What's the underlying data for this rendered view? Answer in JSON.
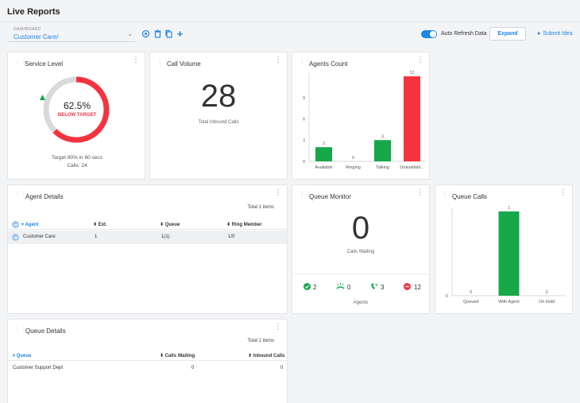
{
  "header": {
    "title": "Live Reports",
    "dashboard_label": "DASHBOARD",
    "dashboard_value": "Customer Care/",
    "auto_refresh_label": "Auto Refresh Data",
    "expand_label": "Expand",
    "submit_idea_label": "Submit Idea"
  },
  "service_level": {
    "title": "Service Level",
    "percent_text": "62.5%",
    "percent_value": 62.5,
    "status": "BELOW TARGET",
    "target_text": "Target 80% in 60 secs",
    "calls_text": "Calls: 24",
    "colors": {
      "ring": "#f4333f",
      "track": "#d7d9dc",
      "arrow": "#17a84a"
    }
  },
  "call_volume": {
    "title": "Call Volume",
    "value": "28",
    "caption": "Total Inbound Calls"
  },
  "agents_count": {
    "title": "Agents Count",
    "chart_data": {
      "type": "bar",
      "categories": [
        "Available",
        "Ringing",
        "Talking",
        "Unavailabl..."
      ],
      "values": [
        2,
        0,
        3,
        12
      ],
      "colors": [
        "#17a84a",
        "#17a84a",
        "#17a84a",
        "#f4333f"
      ],
      "yticks": [
        "0",
        "3",
        "6",
        "9"
      ],
      "ylim": [
        0,
        12
      ]
    }
  },
  "agent_details": {
    "title": "Agent Details",
    "total_items": "Total 1 items",
    "columns": [
      "Agent",
      "Ext.",
      "Queue",
      "Ring Member"
    ],
    "rows": [
      {
        "agent": "Customer Care",
        "ext": "1",
        "queue": "1(1)",
        "ring_member": "1/0"
      }
    ]
  },
  "queue_monitor": {
    "title": "Queue Monitor",
    "value": "0",
    "caption": "Calls Waiting",
    "stats": [
      {
        "icon": "check-circle-icon",
        "value": "2",
        "color": "#17a84a"
      },
      {
        "icon": "ringing-phone-icon",
        "value": "0",
        "color": "#17a84a"
      },
      {
        "icon": "talking-phone-icon",
        "value": "3",
        "color": "#17a84a"
      },
      {
        "icon": "minus-circle-icon",
        "value": "12",
        "color": "#f4333f"
      }
    ],
    "agents_label": "Agents"
  },
  "queue_calls": {
    "title": "Queue Calls",
    "chart_data": {
      "type": "bar",
      "categories": [
        "Queued",
        "With Agent",
        "On Hold"
      ],
      "values": [
        0,
        1,
        0
      ],
      "colors": [
        "#17a84a",
        "#17a84a",
        "#17a84a"
      ],
      "yticks": [
        "0"
      ],
      "ylim": [
        0,
        1
      ]
    }
  },
  "queue_details": {
    "title": "Queue Details",
    "total_items": "Total 1 items",
    "columns": [
      "Queue",
      "Calls Waiting",
      "Inbound Calls"
    ],
    "rows": [
      {
        "queue": "Customer Support Dept",
        "calls_waiting": "0",
        "inbound_calls": "0"
      }
    ]
  }
}
